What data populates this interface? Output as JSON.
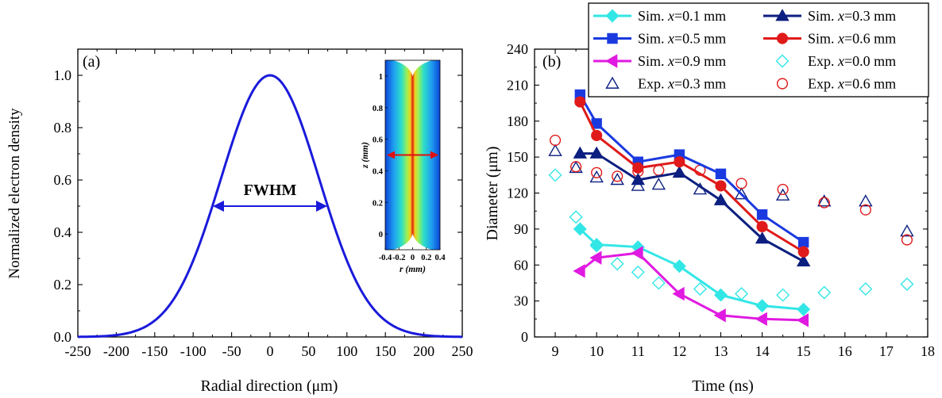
{
  "chart_data": [
    {
      "type": "line",
      "panel_label": "(a)",
      "xlabel": "Radial direction (μm)",
      "ylabel": "Normalized electron density",
      "xlim": [
        -250,
        250
      ],
      "ylim": [
        0,
        1.1
      ],
      "xticks": [
        -250,
        -200,
        -150,
        -100,
        -50,
        0,
        50,
        100,
        150,
        200,
        250
      ],
      "yticks": [
        0.0,
        0.2,
        0.4,
        0.6,
        0.8,
        1.0
      ],
      "xtick_labels": [
        "-250",
        "-200",
        "-150",
        "-100",
        "-50",
        "0",
        "50",
        "100",
        "150",
        "200",
        "250"
      ],
      "ytick_labels": [
        "0.0",
        "0.2",
        "0.4",
        "0.6",
        "0.8",
        "1.0"
      ],
      "curve": {
        "shape": "gaussian",
        "peak": 1.0,
        "center": 0,
        "fwhm": 150,
        "color": "#1a1adb"
      },
      "annotation": {
        "text": "FWHM",
        "x_from": -75,
        "x_to": 75,
        "y": 0.5
      },
      "inset": {
        "xlabel": "r (mm)",
        "ylabel": "z (mm)",
        "xlim": [
          -0.4,
          0.4
        ],
        "ylim": [
          -0.1,
          1.1
        ],
        "xticks": [
          -0.4,
          -0.2,
          0,
          0.2,
          0.4
        ],
        "xtick_labels": [
          "-0.4",
          "-0.2",
          "0",
          "0.2",
          "0.4"
        ],
        "yticks": [
          0,
          0.2,
          0.4,
          0.6,
          0.8,
          1
        ],
        "ytick_labels": [
          "0",
          "0.2",
          "0.4",
          "0.6",
          "0.8",
          "1"
        ],
        "arrow_y": 0.5,
        "arrow_color": "#e01010"
      }
    },
    {
      "type": "line",
      "panel_label": "(b)",
      "xlabel": "Time (ns)",
      "ylabel": "Diameter (μm)",
      "xlim": [
        8.5,
        18
      ],
      "ylim": [
        0,
        240
      ],
      "xticks": [
        9,
        10,
        11,
        12,
        13,
        14,
        15,
        16,
        17,
        18
      ],
      "yticks": [
        0,
        30,
        60,
        90,
        120,
        150,
        180,
        210,
        240
      ],
      "xtick_labels": [
        "9",
        "10",
        "11",
        "12",
        "13",
        "14",
        "15",
        "16",
        "17",
        "18"
      ],
      "ytick_labels": [
        "0",
        "30",
        "60",
        "90",
        "120",
        "150",
        "180",
        "210",
        "240"
      ],
      "legend_position": "top-right",
      "series": [
        {
          "prefix": "Sim. ",
          "var": "x",
          "suffix": "=0.1 mm",
          "marker": "diamond",
          "filled": true,
          "line": true,
          "color": "#33e6e6",
          "x": [
            9.6,
            10,
            11,
            12,
            13,
            14,
            15
          ],
          "y": [
            90,
            77,
            75,
            59,
            35,
            26,
            23
          ]
        },
        {
          "prefix": "Sim. ",
          "var": "x",
          "suffix": "=0.3 mm",
          "marker": "triangle-up",
          "filled": true,
          "line": true,
          "color": "#0c1f80",
          "x": [
            9.6,
            10,
            11,
            12,
            13,
            14,
            15
          ],
          "y": [
            153,
            153,
            131,
            137,
            114,
            82,
            63
          ]
        },
        {
          "prefix": "Sim. ",
          "var": "x",
          "suffix": "=0.5 mm",
          "marker": "square",
          "filled": true,
          "line": true,
          "color": "#1a3ae0",
          "x": [
            9.6,
            10,
            11,
            12,
            13,
            14,
            15
          ],
          "y": [
            202,
            178,
            146,
            152,
            136,
            102,
            79
          ]
        },
        {
          "prefix": "Sim. ",
          "var": "x",
          "suffix": "=0.6 mm",
          "marker": "circle",
          "filled": true,
          "line": true,
          "color": "#e01a1a",
          "x": [
            9.6,
            10,
            11,
            12,
            13,
            14,
            15
          ],
          "y": [
            196,
            168,
            141,
            146,
            126,
            92,
            71
          ]
        },
        {
          "prefix": "Sim. ",
          "var": "x",
          "suffix": "=0.9 mm",
          "marker": "triangle-left",
          "filled": true,
          "line": true,
          "color": "#e01ae0",
          "x": [
            9.6,
            10,
            11,
            12,
            13,
            14,
            15
          ],
          "y": [
            55,
            66,
            70,
            36,
            18,
            15,
            14
          ]
        },
        {
          "prefix": "Exp. ",
          "var": "x",
          "suffix": "=0.0 mm",
          "marker": "diamond",
          "filled": false,
          "line": false,
          "color": "#33e6e6",
          "x": [
            9,
            9.5,
            10,
            10.5,
            11,
            11.5,
            12.5,
            13.5,
            14.5,
            15.5,
            16.5,
            17.5
          ],
          "y": [
            135,
            100,
            76,
            61,
            54,
            45,
            40,
            36,
            35,
            37,
            40,
            44
          ]
        },
        {
          "prefix": "Exp. ",
          "var": "x",
          "suffix": "=0.3 mm",
          "marker": "triangle-up",
          "filled": false,
          "line": false,
          "color": "#0c1f80",
          "x": [
            9,
            9.5,
            10,
            10.5,
            11,
            11.5,
            12.5,
            13.5,
            14.5,
            15.5,
            16.5,
            17.5
          ],
          "y": [
            155,
            141,
            133,
            131,
            126,
            127,
            123,
            119,
            118,
            113,
            113,
            88
          ]
        },
        {
          "prefix": "Exp. ",
          "var": "x",
          "suffix": "=0.6 mm",
          "marker": "circle",
          "filled": false,
          "line": false,
          "color": "#e01a1a",
          "x": [
            9,
            9.5,
            10,
            10.5,
            11,
            11.5,
            12.5,
            13.5,
            14.5,
            15.5,
            16.5,
            17.5
          ],
          "y": [
            164,
            142,
            137,
            134,
            138,
            139,
            139,
            128,
            123,
            112,
            106,
            81
          ]
        }
      ],
      "legend_order": [
        0,
        1,
        2,
        3,
        4,
        5,
        6,
        7
      ]
    }
  ]
}
